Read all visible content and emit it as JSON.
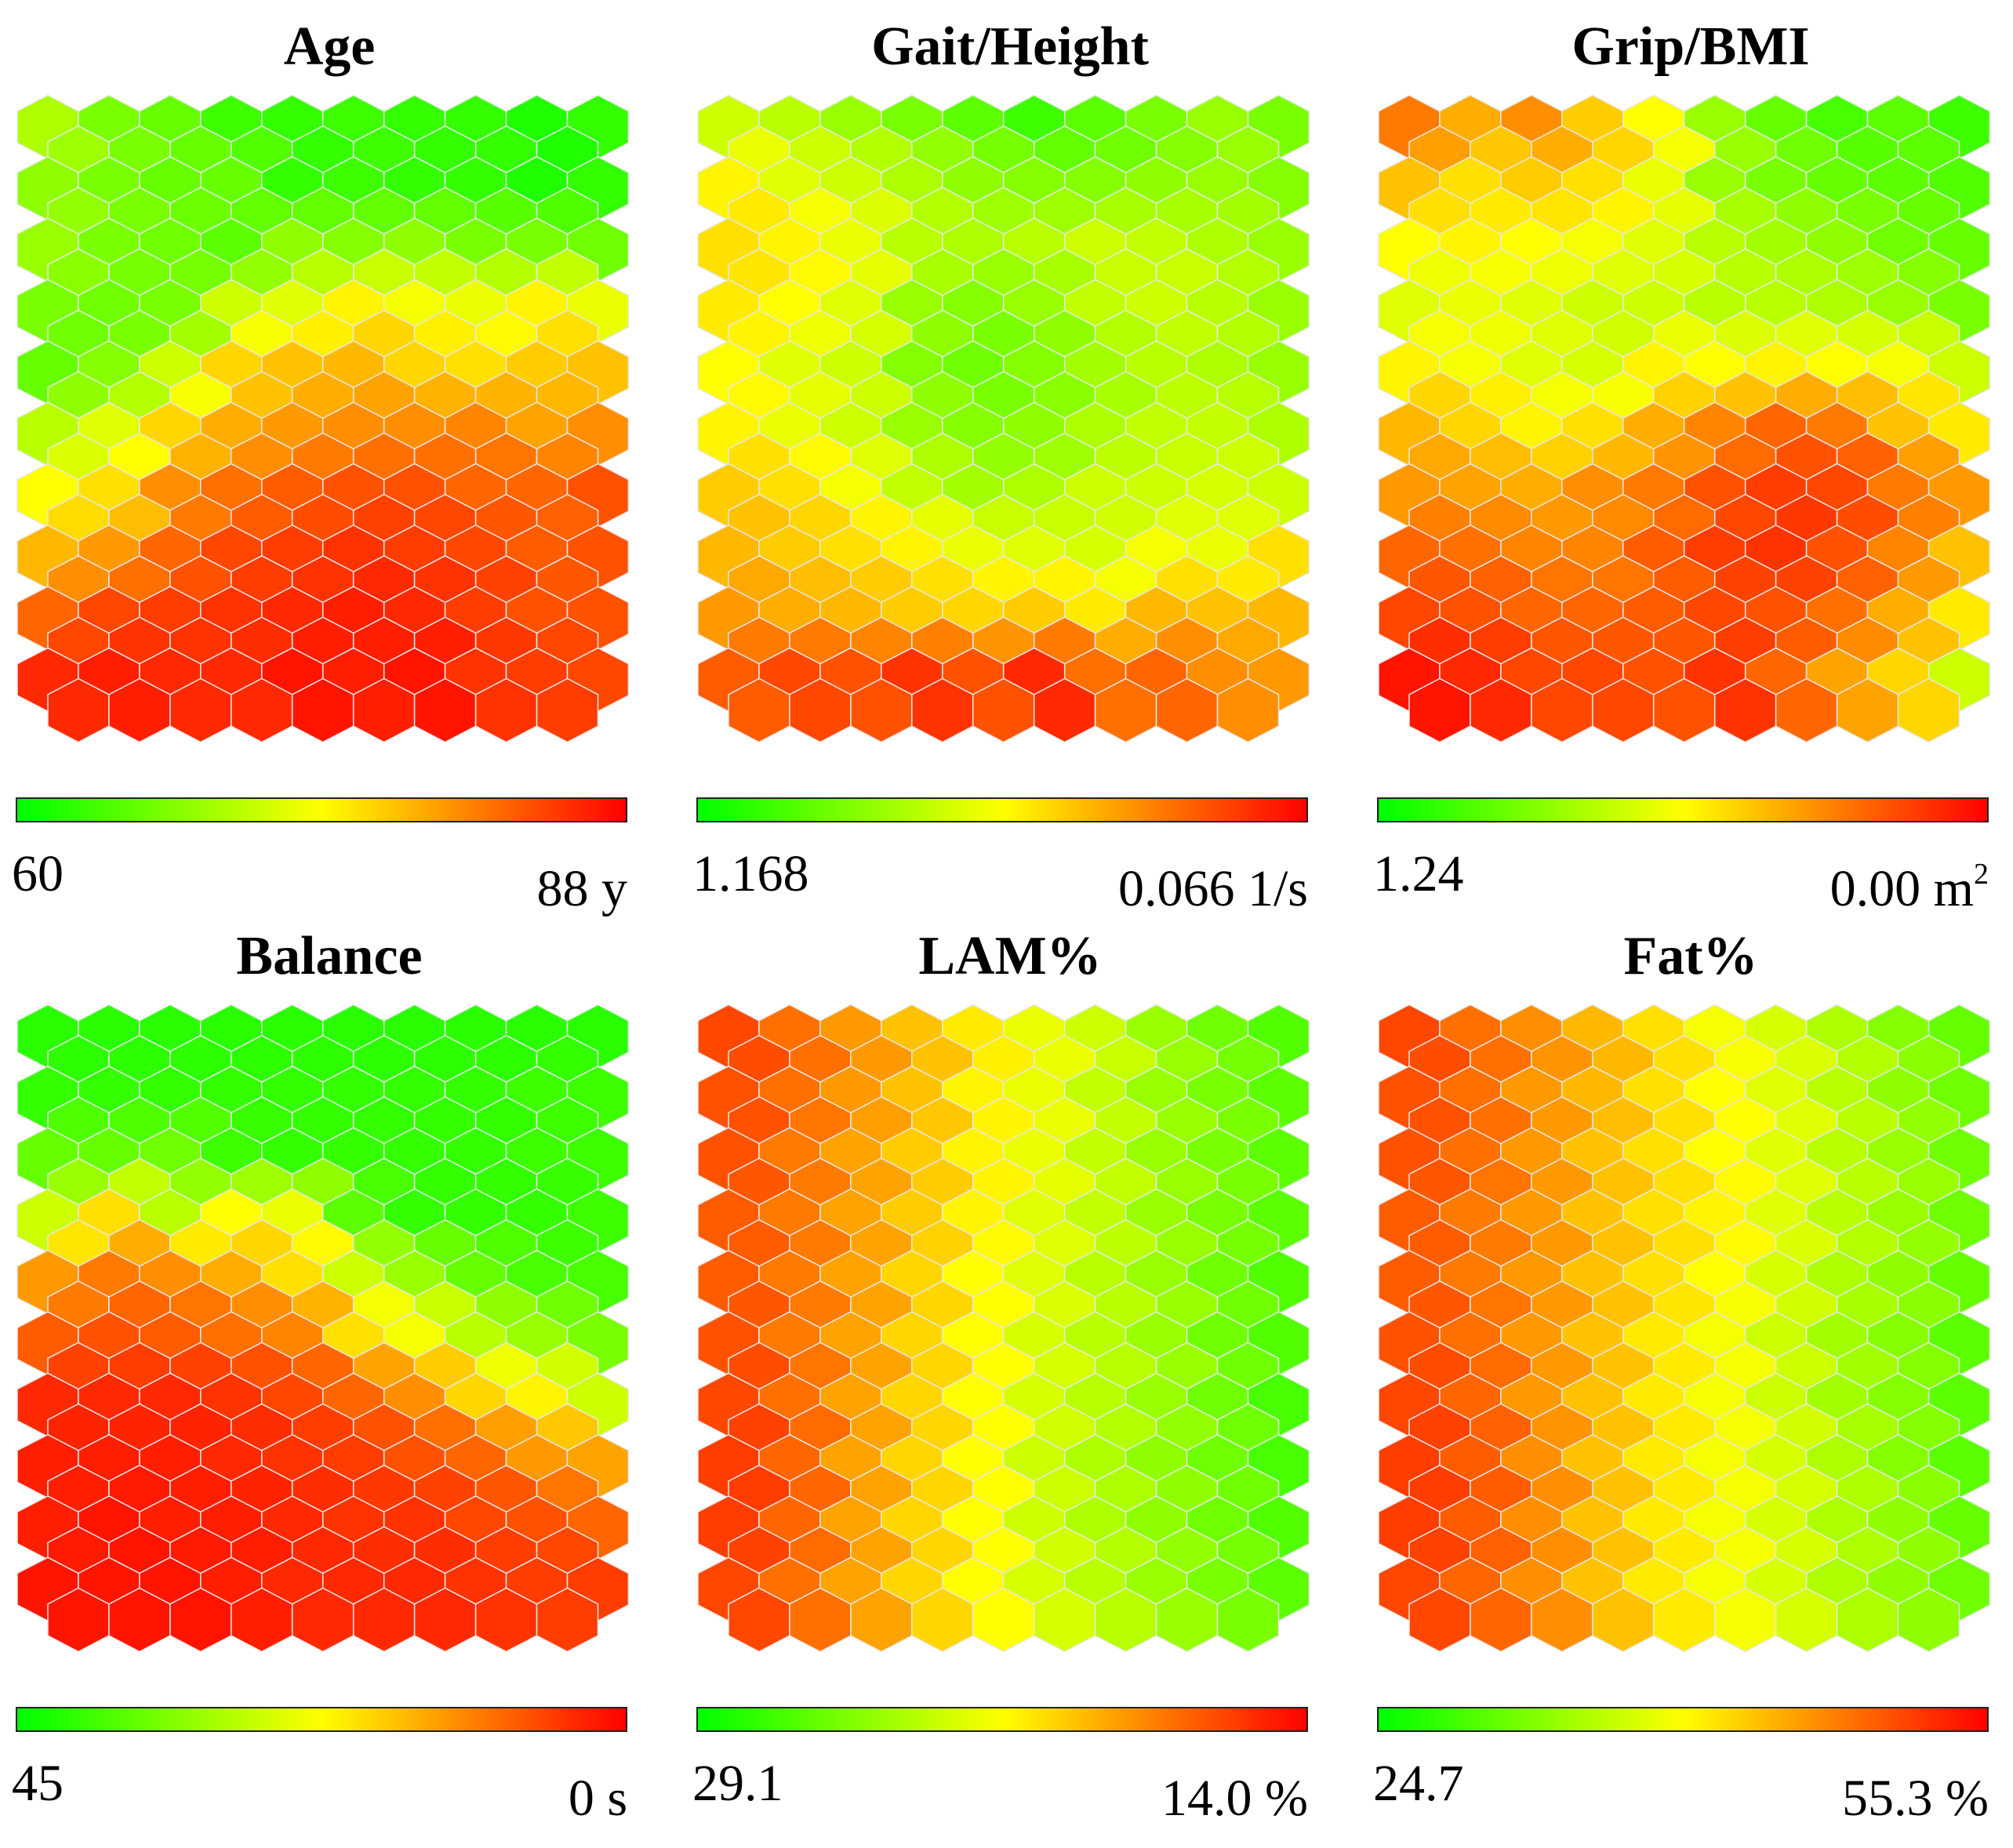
{
  "colors": {
    "low": "#00ff00",
    "mid": "#ffff00",
    "high": "#ff0000",
    "border": "#e8e8e8",
    "cluster_border": "#333333"
  },
  "chart_data": [
    {
      "type": "heatmap",
      "title": "Age",
      "scale_min": "60",
      "scale_max": "88 y",
      "scale_max_sup": "",
      "grid_cols": 10,
      "grid_rows": 10,
      "values": [
        [
          0.34,
          0.24,
          0.2,
          0.12,
          0.1,
          0.12,
          0.1,
          0.1,
          0.06,
          0.1
        ],
        [
          0.28,
          0.24,
          0.2,
          0.2,
          0.1,
          0.12,
          0.1,
          0.1,
          0.06,
          0.1
        ],
        [
          0.3,
          0.24,
          0.22,
          0.18,
          0.28,
          0.26,
          0.28,
          0.24,
          0.24,
          0.22
        ],
        [
          0.24,
          0.22,
          0.24,
          0.4,
          0.44,
          0.52,
          0.48,
          0.46,
          0.52,
          0.46
        ],
        [
          0.2,
          0.26,
          0.4,
          0.58,
          0.62,
          0.64,
          0.58,
          0.56,
          0.6,
          0.62
        ],
        [
          0.36,
          0.44,
          0.58,
          0.66,
          0.7,
          0.72,
          0.72,
          0.74,
          0.68,
          0.72
        ],
        [
          0.5,
          0.56,
          0.72,
          0.78,
          0.82,
          0.84,
          0.84,
          0.8,
          0.8,
          0.84
        ],
        [
          0.64,
          0.7,
          0.8,
          0.86,
          0.88,
          0.9,
          0.88,
          0.86,
          0.82,
          0.84
        ],
        [
          0.8,
          0.86,
          0.88,
          0.9,
          0.92,
          0.94,
          0.92,
          0.88,
          0.84,
          0.84
        ],
        [
          0.92,
          0.94,
          0.92,
          0.92,
          0.96,
          0.94,
          0.96,
          0.9,
          0.88,
          0.86
        ]
      ]
    },
    {
      "type": "heatmap",
      "title": "Gait/Height",
      "scale_min": "1.168",
      "scale_max": "0.066 1/s",
      "scale_max_sup": "",
      "grid_cols": 10,
      "grid_rows": 10,
      "values": [
        [
          0.4,
          0.36,
          0.3,
          0.24,
          0.18,
          0.12,
          0.18,
          0.24,
          0.3,
          0.24
        ],
        [
          0.52,
          0.44,
          0.4,
          0.34,
          0.28,
          0.26,
          0.26,
          0.28,
          0.3,
          0.26
        ],
        [
          0.56,
          0.52,
          0.46,
          0.36,
          0.34,
          0.36,
          0.4,
          0.38,
          0.34,
          0.3
        ],
        [
          0.54,
          0.5,
          0.44,
          0.3,
          0.26,
          0.3,
          0.38,
          0.4,
          0.36,
          0.3
        ],
        [
          0.5,
          0.44,
          0.4,
          0.26,
          0.22,
          0.26,
          0.32,
          0.36,
          0.34,
          0.3
        ],
        [
          0.52,
          0.46,
          0.4,
          0.3,
          0.26,
          0.28,
          0.34,
          0.38,
          0.38,
          0.34
        ],
        [
          0.6,
          0.56,
          0.48,
          0.38,
          0.32,
          0.34,
          0.4,
          0.4,
          0.42,
          0.4
        ],
        [
          0.64,
          0.6,
          0.56,
          0.52,
          0.46,
          0.44,
          0.42,
          0.48,
          0.46,
          0.56
        ],
        [
          0.7,
          0.66,
          0.64,
          0.6,
          0.58,
          0.6,
          0.54,
          0.64,
          0.62,
          0.64
        ],
        [
          0.82,
          0.86,
          0.84,
          0.9,
          0.84,
          0.92,
          0.78,
          0.8,
          0.72,
          0.7
        ]
      ]
    },
    {
      "type": "heatmap",
      "title": "Grip/BMI",
      "scale_min": "1.24",
      "scale_max": "0.00 m",
      "scale_max_sup": "2",
      "grid_cols": 10,
      "grid_rows": 10,
      "values": [
        [
          0.76,
          0.66,
          0.72,
          0.6,
          0.5,
          0.3,
          0.2,
          0.14,
          0.18,
          0.12
        ],
        [
          0.62,
          0.56,
          0.6,
          0.56,
          0.46,
          0.3,
          0.24,
          0.2,
          0.18,
          0.16
        ],
        [
          0.5,
          0.52,
          0.5,
          0.48,
          0.44,
          0.36,
          0.32,
          0.28,
          0.22,
          0.2
        ],
        [
          0.44,
          0.46,
          0.44,
          0.4,
          0.4,
          0.36,
          0.36,
          0.34,
          0.3,
          0.24
        ],
        [
          0.52,
          0.48,
          0.44,
          0.42,
          0.52,
          0.5,
          0.52,
          0.5,
          0.48,
          0.4
        ],
        [
          0.64,
          0.58,
          0.52,
          0.56,
          0.66,
          0.74,
          0.8,
          0.76,
          0.62,
          0.54
        ],
        [
          0.7,
          0.68,
          0.66,
          0.72,
          0.76,
          0.84,
          0.88,
          0.86,
          0.76,
          0.7
        ],
        [
          0.8,
          0.78,
          0.74,
          0.74,
          0.82,
          0.88,
          0.9,
          0.84,
          0.74,
          0.62
        ],
        [
          0.86,
          0.84,
          0.8,
          0.8,
          0.82,
          0.86,
          0.84,
          0.78,
          0.66,
          0.54
        ],
        [
          0.96,
          0.92,
          0.86,
          0.86,
          0.84,
          0.9,
          0.8,
          0.68,
          0.58,
          0.4
        ]
      ]
    },
    {
      "type": "heatmap",
      "title": "Balance",
      "scale_min": "45",
      "scale_max": "0 s",
      "scale_max_sup": "",
      "grid_cols": 10,
      "grid_rows": 10,
      "values": [
        [
          0.08,
          0.08,
          0.08,
          0.08,
          0.08,
          0.08,
          0.08,
          0.08,
          0.08,
          0.08
        ],
        [
          0.1,
          0.1,
          0.1,
          0.1,
          0.1,
          0.1,
          0.1,
          0.1,
          0.12,
          0.12
        ],
        [
          0.2,
          0.2,
          0.22,
          0.12,
          0.1,
          0.1,
          0.1,
          0.1,
          0.12,
          0.12
        ],
        [
          0.4,
          0.56,
          0.36,
          0.5,
          0.46,
          0.18,
          0.1,
          0.1,
          0.1,
          0.12
        ],
        [
          0.7,
          0.76,
          0.72,
          0.66,
          0.56,
          0.4,
          0.3,
          0.2,
          0.14,
          0.14
        ],
        [
          0.82,
          0.84,
          0.82,
          0.78,
          0.74,
          0.56,
          0.48,
          0.36,
          0.3,
          0.24
        ],
        [
          0.92,
          0.92,
          0.92,
          0.9,
          0.86,
          0.8,
          0.72,
          0.58,
          0.52,
          0.4
        ],
        [
          0.94,
          0.94,
          0.94,
          0.92,
          0.9,
          0.88,
          0.84,
          0.8,
          0.7,
          0.68
        ],
        [
          0.94,
          0.96,
          0.94,
          0.94,
          0.92,
          0.9,
          0.9,
          0.86,
          0.84,
          0.8
        ],
        [
          0.96,
          0.96,
          0.96,
          0.94,
          0.92,
          0.92,
          0.92,
          0.9,
          0.88,
          0.88
        ]
      ]
    },
    {
      "type": "heatmap",
      "title": "LAM%",
      "scale_min": "29.1",
      "scale_max": "14.0 %",
      "scale_max_sup": "",
      "grid_cols": 10,
      "grid_rows": 10,
      "values": [
        [
          0.86,
          0.78,
          0.7,
          0.62,
          0.54,
          0.46,
          0.4,
          0.3,
          0.22,
          0.16
        ],
        [
          0.84,
          0.78,
          0.7,
          0.62,
          0.52,
          0.46,
          0.38,
          0.3,
          0.24,
          0.18
        ],
        [
          0.84,
          0.76,
          0.68,
          0.6,
          0.52,
          0.46,
          0.38,
          0.3,
          0.24,
          0.18
        ],
        [
          0.82,
          0.76,
          0.68,
          0.6,
          0.52,
          0.44,
          0.38,
          0.3,
          0.24,
          0.18
        ],
        [
          0.82,
          0.76,
          0.68,
          0.58,
          0.5,
          0.44,
          0.36,
          0.3,
          0.22,
          0.16
        ],
        [
          0.84,
          0.76,
          0.68,
          0.58,
          0.5,
          0.42,
          0.36,
          0.3,
          0.22,
          0.16
        ],
        [
          0.86,
          0.78,
          0.68,
          0.58,
          0.5,
          0.42,
          0.36,
          0.3,
          0.22,
          0.14
        ],
        [
          0.88,
          0.8,
          0.68,
          0.58,
          0.5,
          0.4,
          0.34,
          0.28,
          0.22,
          0.14
        ],
        [
          0.88,
          0.8,
          0.68,
          0.58,
          0.5,
          0.4,
          0.34,
          0.28,
          0.22,
          0.16
        ],
        [
          0.86,
          0.78,
          0.68,
          0.58,
          0.5,
          0.42,
          0.36,
          0.3,
          0.24,
          0.18
        ]
      ]
    },
    {
      "type": "heatmap",
      "title": "Fat%",
      "scale_min": "24.7",
      "scale_max": "55.3 %",
      "scale_max_sup": "",
      "grid_cols": 10,
      "grid_rows": 10,
      "values": [
        [
          0.86,
          0.78,
          0.72,
          0.64,
          0.56,
          0.48,
          0.42,
          0.34,
          0.26,
          0.2
        ],
        [
          0.84,
          0.78,
          0.7,
          0.64,
          0.56,
          0.5,
          0.44,
          0.36,
          0.28,
          0.22
        ],
        [
          0.84,
          0.78,
          0.7,
          0.62,
          0.56,
          0.5,
          0.44,
          0.36,
          0.3,
          0.22
        ],
        [
          0.82,
          0.76,
          0.7,
          0.62,
          0.56,
          0.52,
          0.44,
          0.36,
          0.3,
          0.22
        ],
        [
          0.82,
          0.76,
          0.7,
          0.62,
          0.56,
          0.5,
          0.42,
          0.34,
          0.28,
          0.2
        ],
        [
          0.84,
          0.78,
          0.7,
          0.62,
          0.54,
          0.48,
          0.4,
          0.32,
          0.26,
          0.18
        ],
        [
          0.86,
          0.8,
          0.7,
          0.62,
          0.54,
          0.48,
          0.4,
          0.32,
          0.26,
          0.18
        ],
        [
          0.88,
          0.82,
          0.72,
          0.62,
          0.54,
          0.48,
          0.42,
          0.34,
          0.26,
          0.18
        ],
        [
          0.88,
          0.82,
          0.72,
          0.62,
          0.54,
          0.48,
          0.42,
          0.34,
          0.28,
          0.2
        ],
        [
          0.86,
          0.8,
          0.72,
          0.62,
          0.54,
          0.48,
          0.42,
          0.34,
          0.28,
          0.22
        ]
      ]
    }
  ]
}
